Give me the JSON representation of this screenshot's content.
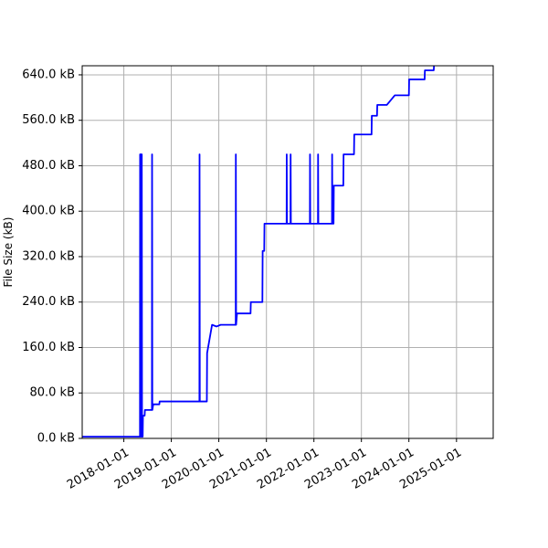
{
  "chart_data": {
    "type": "line",
    "title": "",
    "xlabel": "",
    "ylabel": "File Size (kB)",
    "grid": true,
    "series_color": "#0000ff",
    "x_ticks": [
      "2018-01-01",
      "2019-01-01",
      "2020-01-01",
      "2021-01-01",
      "2022-01-01",
      "2023-01-01",
      "2024-01-01",
      "2025-01-01"
    ],
    "y_ticks": [
      0,
      80,
      160,
      240,
      320,
      400,
      480,
      560,
      640
    ],
    "y_tick_labels": [
      "0.0 kB",
      "80.0 kB",
      "160.0 kB",
      "240.0 kB",
      "320.0 kB",
      "400.0 kB",
      "480.0 kB",
      "560.0 kB",
      "640.0 kB"
    ],
    "xlim": [
      "2017-02-15",
      "2025-10-10"
    ],
    "ylim": [
      0,
      656
    ],
    "series": [
      {
        "points": [
          [
            "2017-02-15",
            3
          ],
          [
            "2018-05-05",
            3
          ],
          [
            "2018-05-06",
            500
          ],
          [
            "2018-05-08",
            3
          ],
          [
            "2018-05-10",
            500
          ],
          [
            "2018-05-12",
            3
          ],
          [
            "2018-05-15",
            500
          ],
          [
            "2018-05-17",
            3
          ],
          [
            "2018-05-19",
            500
          ],
          [
            "2018-05-21",
            3
          ],
          [
            "2018-05-26",
            3
          ],
          [
            "2018-05-28",
            40
          ],
          [
            "2018-06-10",
            40
          ],
          [
            "2018-06-12",
            50
          ],
          [
            "2018-08-05",
            50
          ],
          [
            "2018-08-06",
            500
          ],
          [
            "2018-08-08",
            50
          ],
          [
            "2018-08-15",
            60
          ],
          [
            "2018-10-01",
            60
          ],
          [
            "2018-10-03",
            65
          ],
          [
            "2019-08-05",
            65
          ],
          [
            "2019-08-06",
            500
          ],
          [
            "2019-08-08",
            65
          ],
          [
            "2019-10-01",
            65
          ],
          [
            "2019-10-03",
            150
          ],
          [
            "2019-11-10",
            200
          ],
          [
            "2019-12-15",
            197
          ],
          [
            "2020-01-15",
            200
          ],
          [
            "2020-05-10",
            200
          ],
          [
            "2020-05-11",
            500
          ],
          [
            "2020-05-13",
            200
          ],
          [
            "2020-05-20",
            220
          ],
          [
            "2020-09-01",
            220
          ],
          [
            "2020-09-03",
            240
          ],
          [
            "2020-12-01",
            240
          ],
          [
            "2020-12-03",
            330
          ],
          [
            "2020-12-15",
            330
          ],
          [
            "2020-12-17",
            378
          ],
          [
            "2021-06-05",
            378
          ],
          [
            "2021-06-06",
            500
          ],
          [
            "2021-06-08",
            378
          ],
          [
            "2021-07-05",
            378
          ],
          [
            "2021-07-06",
            500
          ],
          [
            "2021-07-08",
            378
          ],
          [
            "2021-12-01",
            378
          ],
          [
            "2021-12-02",
            500
          ],
          [
            "2021-12-04",
            378
          ],
          [
            "2022-02-01",
            378
          ],
          [
            "2022-02-02",
            500
          ],
          [
            "2022-02-04",
            378
          ],
          [
            "2022-05-20",
            378
          ],
          [
            "2022-05-21",
            500
          ],
          [
            "2022-05-23",
            378
          ],
          [
            "2022-06-01",
            378
          ],
          [
            "2022-06-03",
            445
          ],
          [
            "2022-08-15",
            445
          ],
          [
            "2022-08-17",
            500
          ],
          [
            "2022-11-05",
            500
          ],
          [
            "2022-11-07",
            535
          ],
          [
            "2023-03-20",
            535
          ],
          [
            "2023-03-22",
            568
          ],
          [
            "2023-05-01",
            568
          ],
          [
            "2023-05-03",
            587
          ],
          [
            "2023-07-15",
            587
          ],
          [
            "2023-09-15",
            604
          ],
          [
            "2024-01-01",
            604
          ],
          [
            "2024-01-03",
            632
          ],
          [
            "2024-05-01",
            632
          ],
          [
            "2024-05-03",
            648
          ],
          [
            "2024-07-10",
            648
          ],
          [
            "2024-07-12",
            656
          ]
        ]
      }
    ]
  }
}
